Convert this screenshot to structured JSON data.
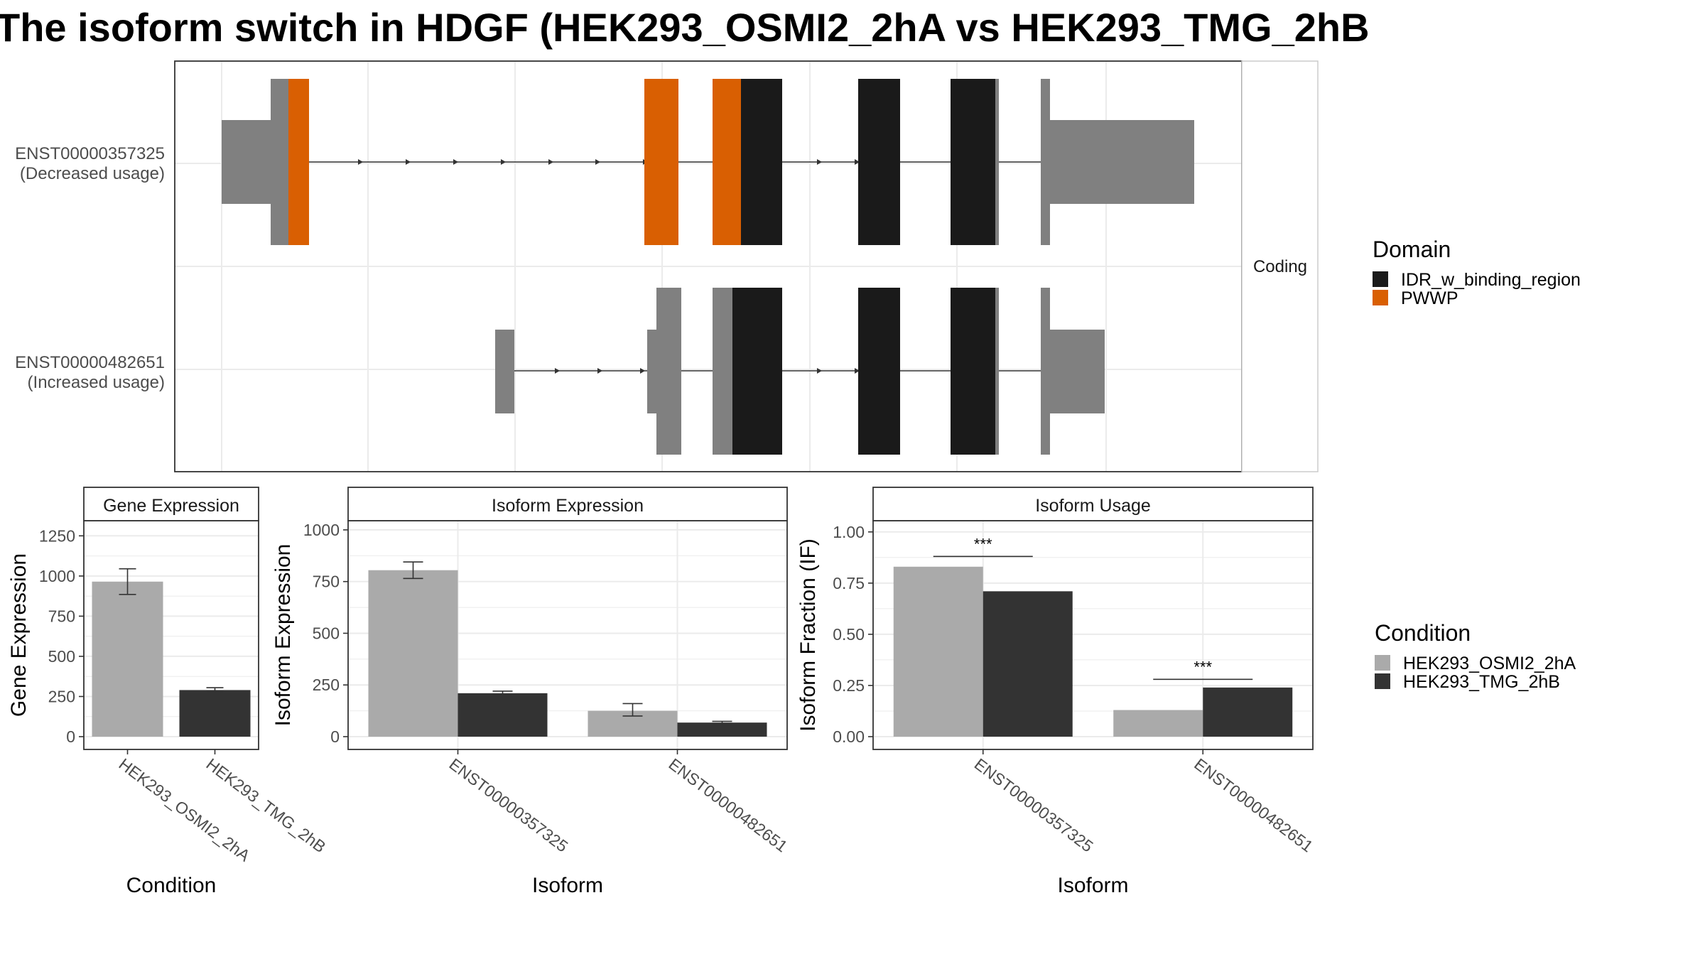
{
  "title": "The isoform switch in HDGF (HEK293_OSMI2_2hA vs HEK293_TMG_2hB",
  "transcript_panel": {
    "facet_label": "Coding",
    "transcripts": [
      {
        "id": "ENST00000357325",
        "label_line1": "ENST00000357325",
        "label_line2": "(Decreased usage)"
      },
      {
        "id": "ENST00000482651",
        "label_line1": "ENST00000482651",
        "label_line2": "(Increased usage)"
      }
    ]
  },
  "domain_legend": {
    "title": "Domain",
    "items": [
      {
        "name": "IDR_w_binding_region",
        "color": "#1a1a1a"
      },
      {
        "name": "PWWP",
        "color": "#d95f02"
      }
    ]
  },
  "condition_legend": {
    "title": "Condition",
    "items": [
      {
        "name": "HEK293_OSMI2_2hA",
        "color": "#aaaaaa"
      },
      {
        "name": "HEK293_TMG_2hB",
        "color": "#333333"
      }
    ]
  },
  "chart_data": [
    {
      "type": "bar",
      "title": "Gene Expression",
      "xlabel": "Condition",
      "ylabel": "Gene Expression",
      "ylim": [
        0,
        1300
      ],
      "yticks": [
        0,
        250,
        500,
        750,
        1000,
        1250
      ],
      "categories": [
        "HEK293_OSMI2_2hA",
        "HEK293_TMG_2hB"
      ],
      "values": [
        965,
        290
      ],
      "error_low": [
        885,
        278
      ],
      "error_high": [
        1045,
        305
      ]
    },
    {
      "type": "bar",
      "title": "Isoform Expression",
      "xlabel": "Isoform",
      "ylabel": "Isoform Expression",
      "ylim": [
        0,
        1010
      ],
      "yticks": [
        0,
        250,
        500,
        750,
        1000
      ],
      "categories": [
        "ENST00000357325",
        "ENST00000482651"
      ],
      "series": [
        {
          "name": "HEK293_OSMI2_2hA",
          "values": [
            805,
            125
          ],
          "error_low": [
            765,
            100
          ],
          "error_high": [
            845,
            160
          ]
        },
        {
          "name": "HEK293_TMG_2hB",
          "values": [
            210,
            68
          ],
          "error_low": [
            203,
            64
          ],
          "error_high": [
            220,
            74
          ]
        }
      ]
    },
    {
      "type": "bar",
      "title": "Isoform Usage",
      "xlabel": "Isoform",
      "ylabel": "Isoform Fraction (IF)",
      "ylim": [
        0,
        1.02
      ],
      "yticks": [
        "0.00",
        "0.25",
        "0.50",
        "0.75",
        "1.00"
      ],
      "categories": [
        "ENST00000357325",
        "ENST00000482651"
      ],
      "series": [
        {
          "name": "HEK293_OSMI2_2hA",
          "values": [
            0.83,
            0.13
          ]
        },
        {
          "name": "HEK293_TMG_2hB",
          "values": [
            0.71,
            0.24
          ]
        }
      ],
      "significance": [
        {
          "category": "ENST00000357325",
          "label": "***",
          "y": 0.88
        },
        {
          "category": "ENST00000482651",
          "label": "***",
          "y": 0.28
        }
      ]
    }
  ]
}
